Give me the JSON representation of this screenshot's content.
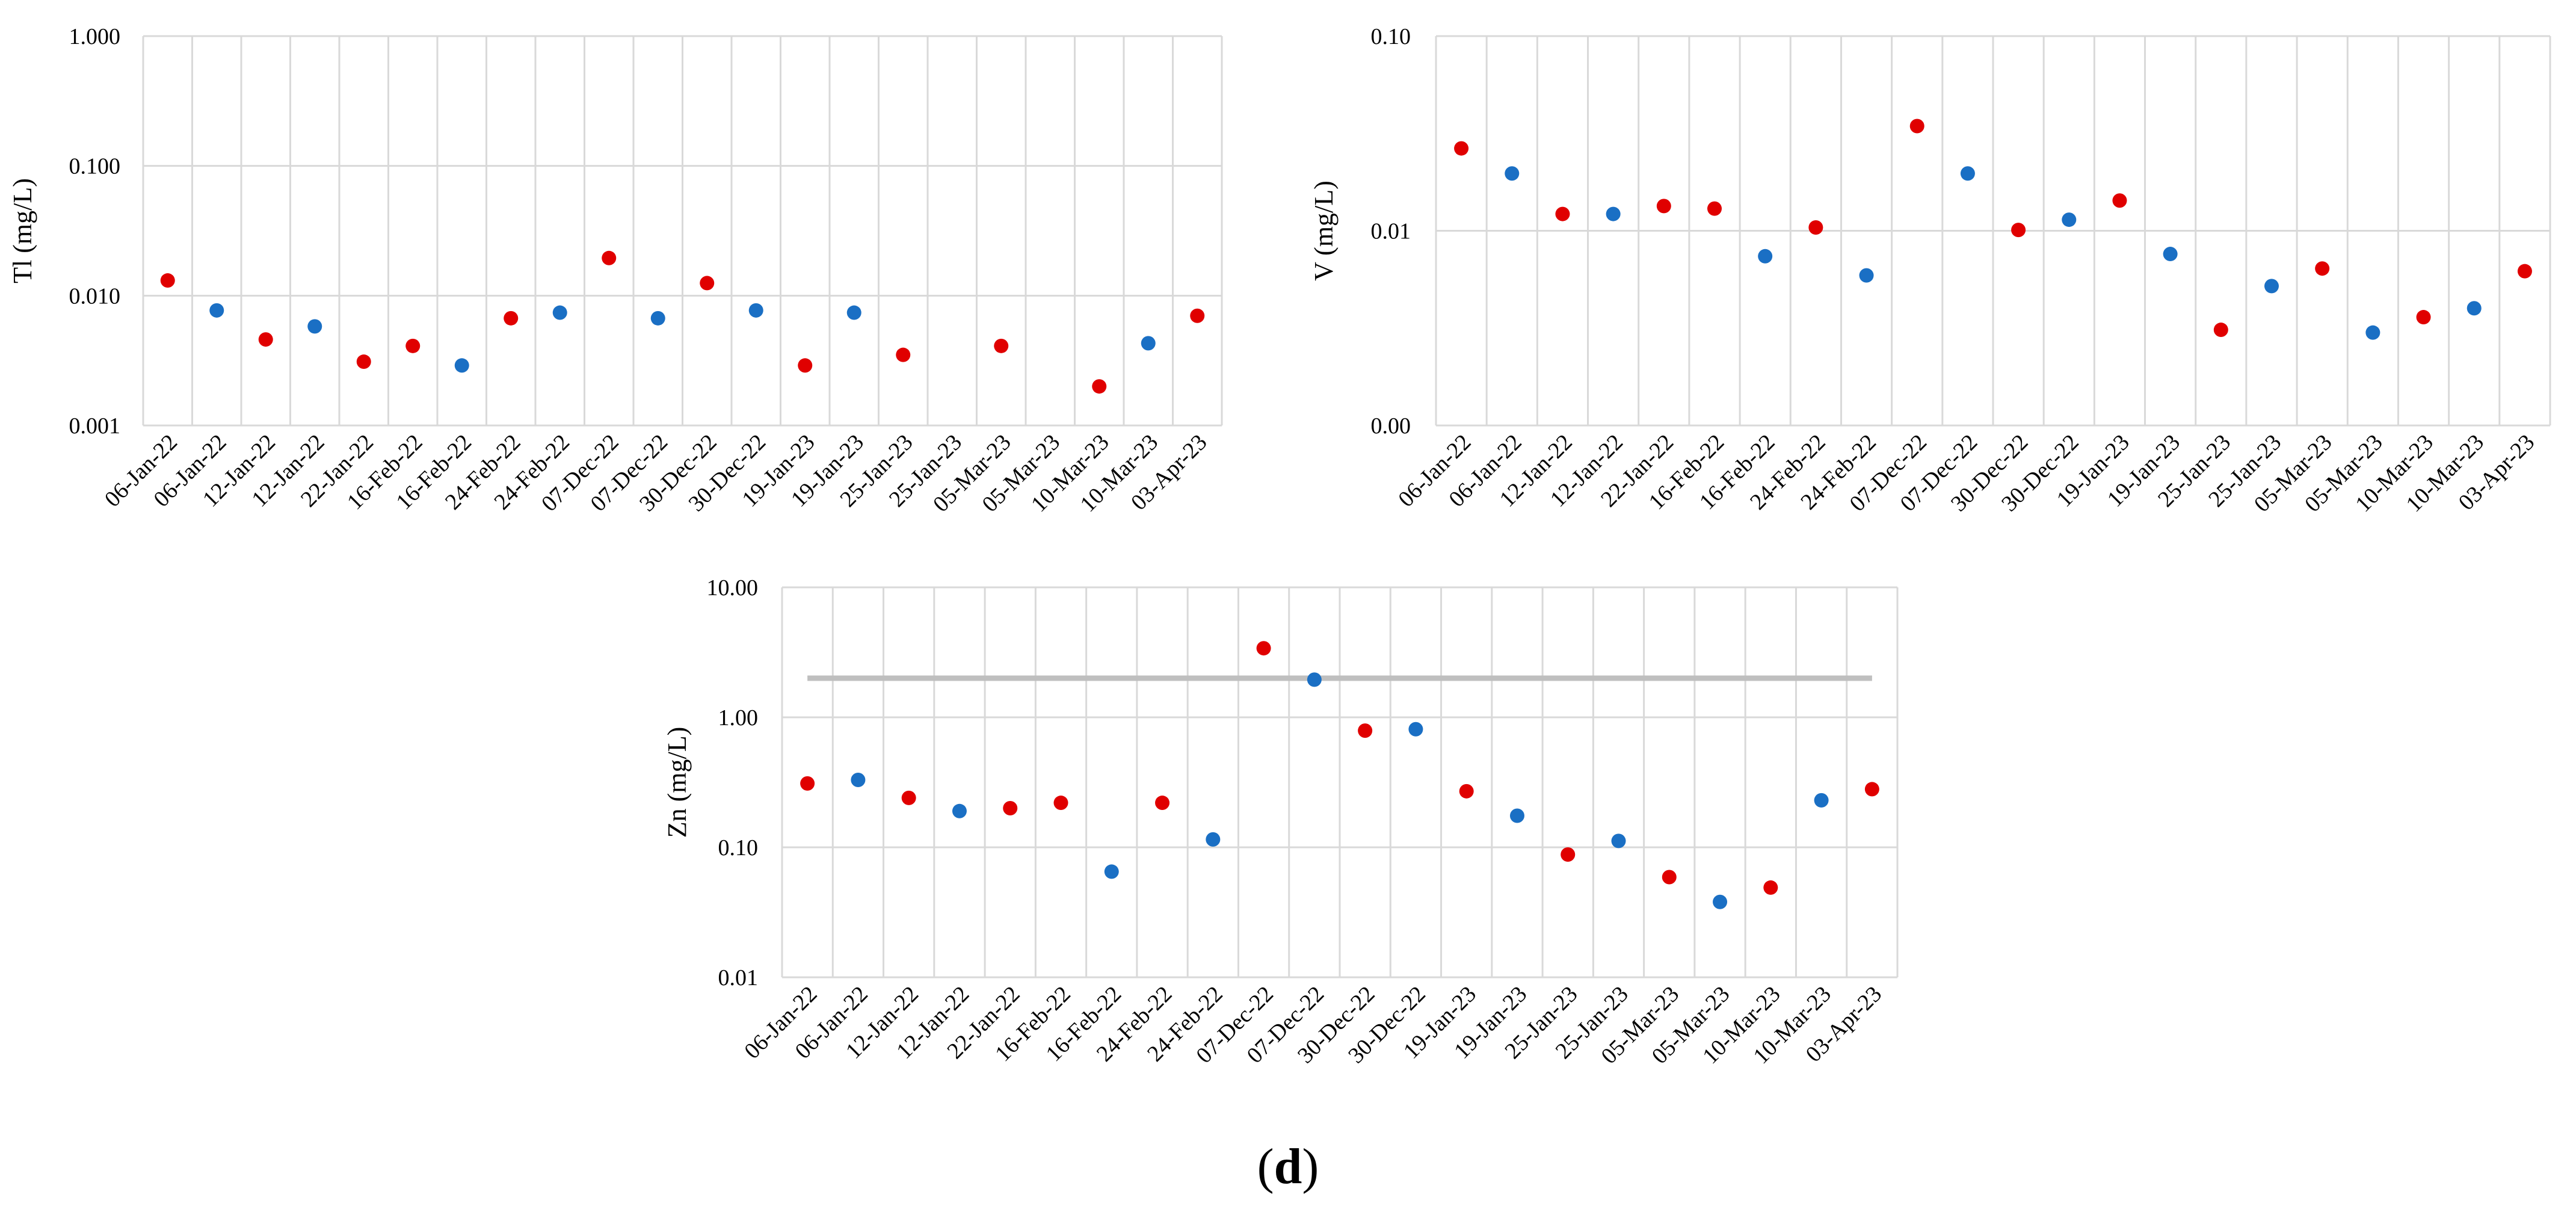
{
  "figure": {
    "caption_open": "(",
    "caption_letter": "d",
    "caption_close": ")"
  },
  "colors": {
    "series_red": "#e00000",
    "series_blue": "#1a6fc4",
    "grid": "#d9d9d9",
    "reference_line": "#bfbfbf"
  },
  "chart_data": [
    {
      "id": "tl",
      "type": "scatter",
      "yscale": "log",
      "ylabel": "Tl (mg/L)",
      "ylim": [
        0.001,
        1.0
      ],
      "yticks": [
        {
          "value": 0.001,
          "label": "0.001"
        },
        {
          "value": 0.01,
          "label": "0.010"
        },
        {
          "value": 0.1,
          "label": "0.100"
        },
        {
          "value": 1.0,
          "label": "1.000"
        }
      ],
      "categories": [
        "06-Jan-22",
        "06-Jan-22",
        "12-Jan-22",
        "12-Jan-22",
        "22-Jan-22",
        "16-Feb-22",
        "16-Feb-22",
        "24-Feb-22",
        "24-Feb-22",
        "07-Dec-22",
        "07-Dec-22",
        "30-Dec-22",
        "30-Dec-22",
        "19-Jan-23",
        "19-Jan-23",
        "25-Jan-23",
        "25-Jan-23",
        "05-Mar-23",
        "05-Mar-23",
        "10-Mar-23",
        "10-Mar-23",
        "03-Apr-23"
      ],
      "points": [
        {
          "x": 0,
          "y": 0.0131,
          "series": "red"
        },
        {
          "x": 1,
          "y": 0.0077,
          "series": "blue"
        },
        {
          "x": 2,
          "y": 0.0046,
          "series": "red"
        },
        {
          "x": 3,
          "y": 0.0058,
          "series": "blue"
        },
        {
          "x": 4,
          "y": 0.0031,
          "series": "red"
        },
        {
          "x": 5,
          "y": 0.0041,
          "series": "red"
        },
        {
          "x": 6,
          "y": 0.0029,
          "series": "blue"
        },
        {
          "x": 7,
          "y": 0.0067,
          "series": "red"
        },
        {
          "x": 8,
          "y": 0.0074,
          "series": "blue"
        },
        {
          "x": 9,
          "y": 0.0195,
          "series": "red"
        },
        {
          "x": 10,
          "y": 0.0067,
          "series": "blue"
        },
        {
          "x": 11,
          "y": 0.0125,
          "series": "red"
        },
        {
          "x": 12,
          "y": 0.0077,
          "series": "blue"
        },
        {
          "x": 13,
          "y": 0.0029,
          "series": "red"
        },
        {
          "x": 14,
          "y": 0.0074,
          "series": "blue"
        },
        {
          "x": 15,
          "y": 0.0035,
          "series": "red"
        },
        {
          "x": 17,
          "y": 0.0041,
          "series": "red"
        },
        {
          "x": 19,
          "y": 0.002,
          "series": "red"
        },
        {
          "x": 20,
          "y": 0.0043,
          "series": "blue"
        },
        {
          "x": 21,
          "y": 0.007,
          "series": "red"
        }
      ]
    },
    {
      "id": "v",
      "type": "scatter",
      "yscale": "log",
      "ylabel": "V (mg/L)",
      "ylim": [
        0.001,
        0.1
      ],
      "yticks": [
        {
          "value": 0.001,
          "label": "0.00"
        },
        {
          "value": 0.01,
          "label": "0.01"
        },
        {
          "value": 0.1,
          "label": "0.10"
        }
      ],
      "categories": [
        "06-Jan-22",
        "06-Jan-22",
        "12-Jan-22",
        "12-Jan-22",
        "22-Jan-22",
        "16-Feb-22",
        "16-Feb-22",
        "24-Feb-22",
        "24-Feb-22",
        "07-Dec-22",
        "07-Dec-22",
        "30-Dec-22",
        "30-Dec-22",
        "19-Jan-23",
        "19-Jan-23",
        "25-Jan-23",
        "25-Jan-23",
        "05-Mar-23",
        "05-Mar-23",
        "10-Mar-23",
        "10-Mar-23",
        "03-Apr-23"
      ],
      "points": [
        {
          "x": 0,
          "y": 0.0265,
          "series": "red"
        },
        {
          "x": 1,
          "y": 0.0197,
          "series": "blue"
        },
        {
          "x": 2,
          "y": 0.0122,
          "series": "red"
        },
        {
          "x": 3,
          "y": 0.0122,
          "series": "blue"
        },
        {
          "x": 4,
          "y": 0.0134,
          "series": "red"
        },
        {
          "x": 5,
          "y": 0.013,
          "series": "red"
        },
        {
          "x": 6,
          "y": 0.0074,
          "series": "blue"
        },
        {
          "x": 7,
          "y": 0.0104,
          "series": "red"
        },
        {
          "x": 8,
          "y": 0.0059,
          "series": "blue"
        },
        {
          "x": 9,
          "y": 0.0345,
          "series": "red"
        },
        {
          "x": 10,
          "y": 0.0197,
          "series": "blue"
        },
        {
          "x": 11,
          "y": 0.0101,
          "series": "red"
        },
        {
          "x": 12,
          "y": 0.0114,
          "series": "blue"
        },
        {
          "x": 13,
          "y": 0.0143,
          "series": "red"
        },
        {
          "x": 14,
          "y": 0.0076,
          "series": "blue"
        },
        {
          "x": 15,
          "y": 0.0031,
          "series": "red"
        },
        {
          "x": 16,
          "y": 0.0052,
          "series": "blue"
        },
        {
          "x": 17,
          "y": 0.0064,
          "series": "red"
        },
        {
          "x": 18,
          "y": 0.003,
          "series": "blue"
        },
        {
          "x": 19,
          "y": 0.0036,
          "series": "red"
        },
        {
          "x": 20,
          "y": 0.004,
          "series": "blue"
        },
        {
          "x": 21,
          "y": 0.0062,
          "series": "red"
        }
      ]
    },
    {
      "id": "zn",
      "type": "scatter",
      "yscale": "log",
      "ylabel": "Zn (mg/L)",
      "ylim": [
        0.01,
        10.0
      ],
      "yticks": [
        {
          "value": 0.01,
          "label": "0.01"
        },
        {
          "value": 0.1,
          "label": "0.10"
        },
        {
          "value": 1.0,
          "label": "1.00"
        },
        {
          "value": 10.0,
          "label": "10.00"
        }
      ],
      "reference_line": 2.0,
      "categories": [
        "06-Jan-22",
        "06-Jan-22",
        "12-Jan-22",
        "12-Jan-22",
        "22-Jan-22",
        "16-Feb-22",
        "16-Feb-22",
        "24-Feb-22",
        "24-Feb-22",
        "07-Dec-22",
        "07-Dec-22",
        "30-Dec-22",
        "30-Dec-22",
        "19-Jan-23",
        "19-Jan-23",
        "25-Jan-23",
        "25-Jan-23",
        "05-Mar-23",
        "05-Mar-23",
        "10-Mar-23",
        "10-Mar-23",
        "03-Apr-23"
      ],
      "points": [
        {
          "x": 0,
          "y": 0.31,
          "series": "red"
        },
        {
          "x": 1,
          "y": 0.33,
          "series": "blue"
        },
        {
          "x": 2,
          "y": 0.24,
          "series": "red"
        },
        {
          "x": 3,
          "y": 0.19,
          "series": "blue"
        },
        {
          "x": 4,
          "y": 0.2,
          "series": "red"
        },
        {
          "x": 5,
          "y": 0.22,
          "series": "red"
        },
        {
          "x": 6,
          "y": 0.065,
          "series": "blue"
        },
        {
          "x": 7,
          "y": 0.22,
          "series": "red"
        },
        {
          "x": 8,
          "y": 0.115,
          "series": "blue"
        },
        {
          "x": 9,
          "y": 3.4,
          "series": "red"
        },
        {
          "x": 10,
          "y": 1.95,
          "series": "blue"
        },
        {
          "x": 11,
          "y": 0.79,
          "series": "red"
        },
        {
          "x": 12,
          "y": 0.81,
          "series": "blue"
        },
        {
          "x": 13,
          "y": 0.27,
          "series": "red"
        },
        {
          "x": 14,
          "y": 0.175,
          "series": "blue"
        },
        {
          "x": 15,
          "y": 0.088,
          "series": "red"
        },
        {
          "x": 16,
          "y": 0.112,
          "series": "blue"
        },
        {
          "x": 17,
          "y": 0.059,
          "series": "red"
        },
        {
          "x": 18,
          "y": 0.038,
          "series": "blue"
        },
        {
          "x": 19,
          "y": 0.049,
          "series": "red"
        },
        {
          "x": 20,
          "y": 0.23,
          "series": "blue"
        },
        {
          "x": 21,
          "y": 0.28,
          "series": "red"
        }
      ]
    }
  ]
}
